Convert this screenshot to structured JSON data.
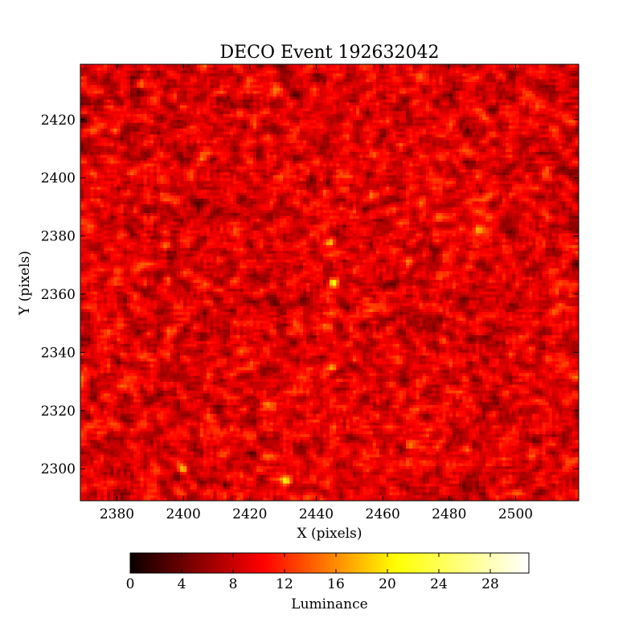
{
  "chart_data": {
    "type": "heatmap",
    "title": "DECO Event 192632042",
    "xlabel": "X (pixels)",
    "ylabel": "Y (pixels)",
    "xlim": [
      2369,
      2519
    ],
    "ylim": [
      2289,
      2439
    ],
    "xticks": [
      2380,
      2400,
      2420,
      2440,
      2460,
      2480,
      2500
    ],
    "yticks": [
      2300,
      2320,
      2340,
      2360,
      2380,
      2400,
      2420
    ],
    "grid": false,
    "colormap": "hot",
    "colorbar": {
      "label": "Luminance",
      "range": [
        0,
        31
      ],
      "ticks": [
        0,
        4,
        8,
        12,
        16,
        20,
        24,
        28
      ],
      "colors": [
        "#0b0000",
        "#ff0000",
        "#ffff00",
        "#ffffff"
      ]
    },
    "background_luminance": 9,
    "bright_spots": [
      {
        "x": 2445,
        "y": 2364,
        "value": 24
      },
      {
        "x": 2444,
        "y": 2378,
        "value": 18
      },
      {
        "x": 2445,
        "y": 2335,
        "value": 17
      },
      {
        "x": 2400,
        "y": 2300,
        "value": 18
      },
      {
        "x": 2431,
        "y": 2296,
        "value": 18
      },
      {
        "x": 2387,
        "y": 2432,
        "value": 17
      },
      {
        "x": 2395,
        "y": 2365,
        "value": 16
      },
      {
        "x": 2395,
        "y": 2377,
        "value": 15
      },
      {
        "x": 2408,
        "y": 2357,
        "value": 15
      },
      {
        "x": 2464,
        "y": 2342,
        "value": 15
      },
      {
        "x": 2489,
        "y": 2382,
        "value": 15
      },
      {
        "x": 2491,
        "y": 2393,
        "value": 14
      },
      {
        "x": 2406,
        "y": 2407,
        "value": 14
      },
      {
        "x": 2425,
        "y": 2322,
        "value": 14
      },
      {
        "x": 2505,
        "y": 2304,
        "value": 14
      },
      {
        "x": 2518,
        "y": 2419,
        "value": 14
      },
      {
        "x": 2468,
        "y": 2308,
        "value": 13
      },
      {
        "x": 2426,
        "y": 2304,
        "value": 13
      },
      {
        "x": 2437,
        "y": 2402,
        "value": 13
      }
    ]
  }
}
